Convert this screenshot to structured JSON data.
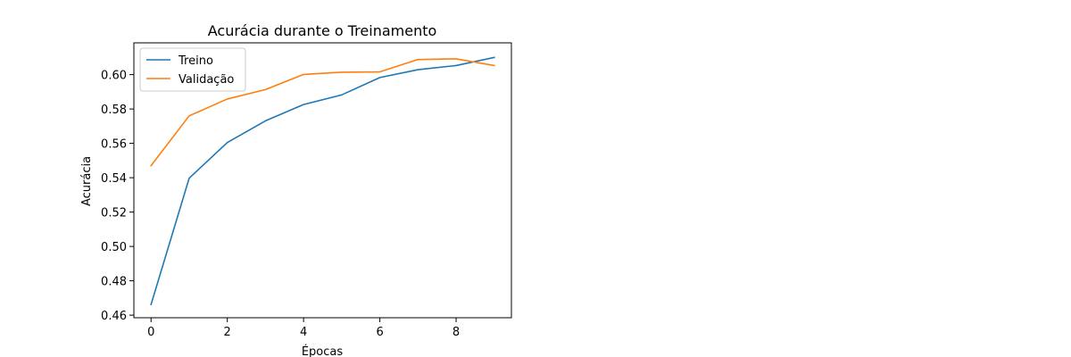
{
  "chart_data": {
    "type": "line",
    "title": "Acurácia durante o Treinamento",
    "xlabel": "Épocas",
    "ylabel": "Acurácia",
    "x": [
      0,
      1,
      2,
      3,
      4,
      5,
      6,
      7,
      8,
      9
    ],
    "xlim": [
      -0.45,
      9.45
    ],
    "ylim": [
      0.4585,
      0.6185
    ],
    "xticks": [
      0,
      2,
      4,
      6,
      8
    ],
    "xtick_labels": [
      "0",
      "2",
      "4",
      "6",
      "8"
    ],
    "yticks": [
      0.46,
      0.48,
      0.5,
      0.52,
      0.54,
      0.56,
      0.58,
      0.6
    ],
    "ytick_labels": [
      "0.46",
      "0.48",
      "0.50",
      "0.52",
      "0.54",
      "0.56",
      "0.58",
      "0.60"
    ],
    "grid": false,
    "legend_position": "top-left",
    "series": [
      {
        "name": "Treino",
        "color": "#1f77b4",
        "values": [
          0.4662,
          0.5397,
          0.5605,
          0.5731,
          0.5826,
          0.5882,
          0.5983,
          0.6029,
          0.6053,
          0.61
        ]
      },
      {
        "name": "Validação",
        "color": "#ff7f0e",
        "values": [
          0.547,
          0.576,
          0.5858,
          0.5913,
          0.6001,
          0.6014,
          0.6016,
          0.6088,
          0.6092,
          0.6053
        ]
      }
    ]
  }
}
